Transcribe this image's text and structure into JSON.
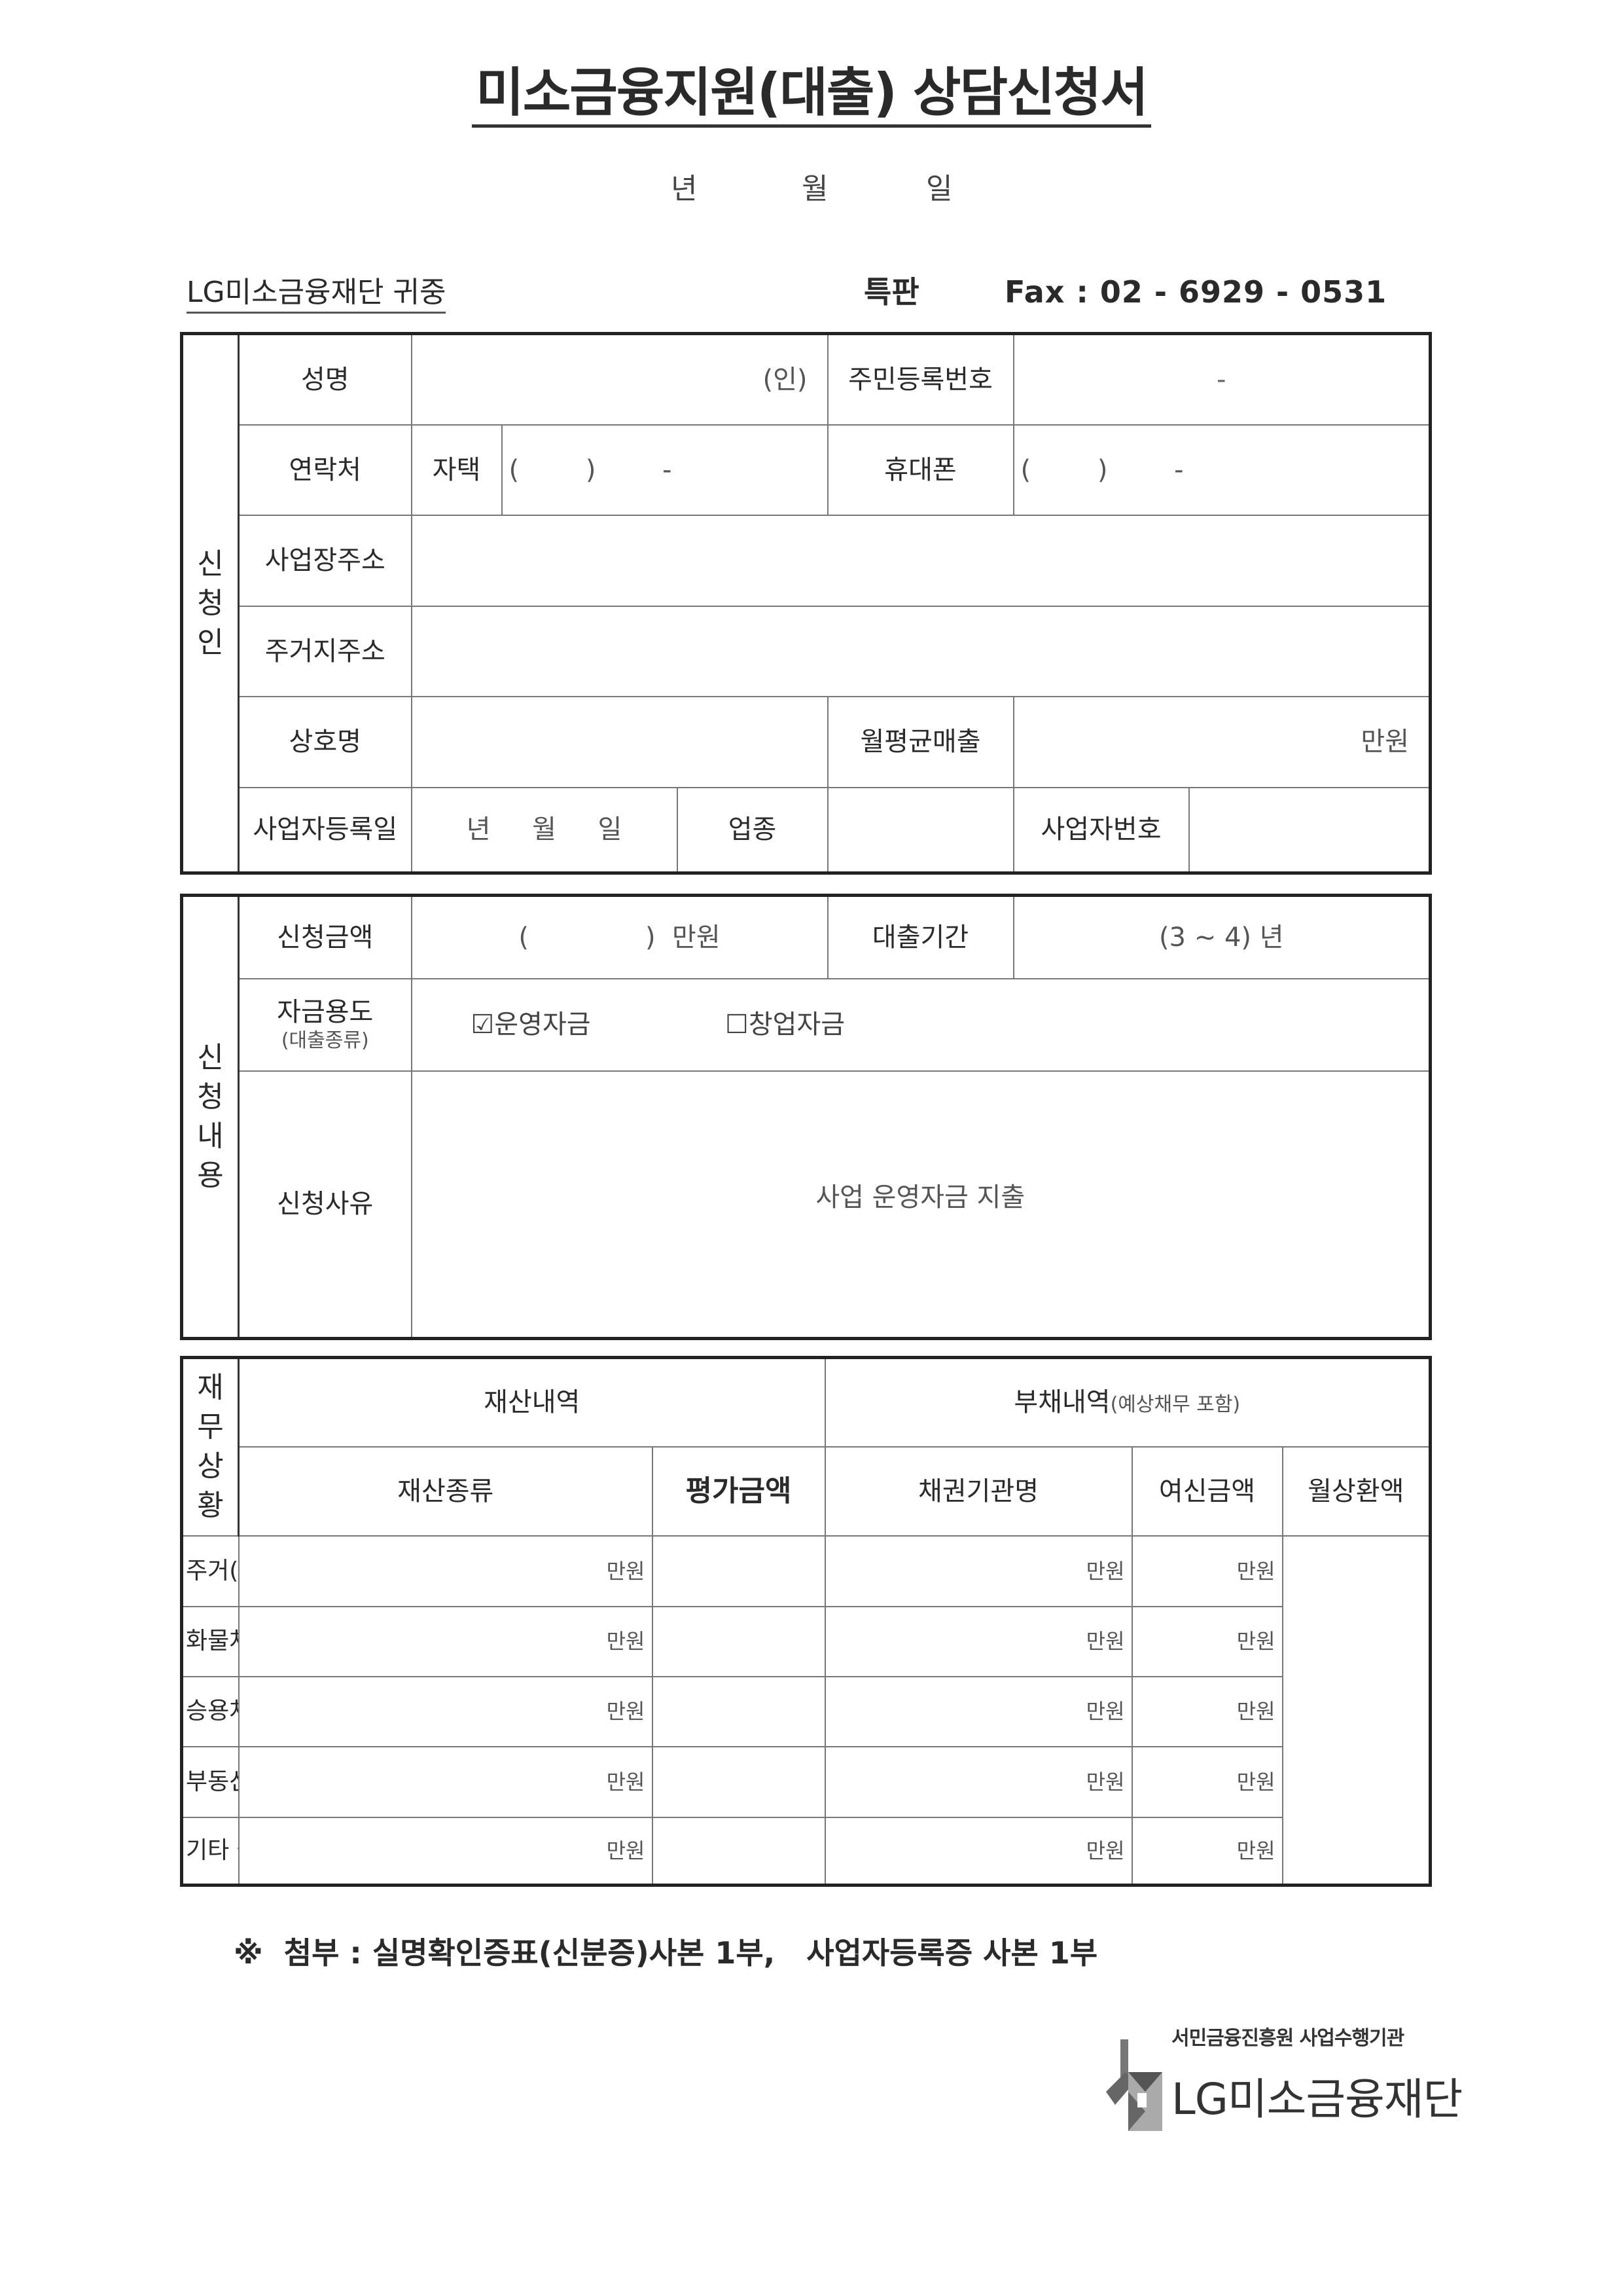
{
  "title": "미소금융지원(대출) 상담신청서",
  "date": {
    "year": "년",
    "month": "월",
    "day": "일"
  },
  "header": {
    "recipient": "LG미소금융재단 귀중",
    "special": "특판",
    "fax": "Fax : 02 - 6929 - 0531"
  },
  "applicant": {
    "section": "신청인",
    "name_label": "성명",
    "seal": "(인)",
    "rrn_label": "주민등록번호",
    "rrn_value": "-",
    "contact_label": "연락처",
    "home_label": "자택",
    "home_value": "(        )        -",
    "mobile_label": "휴대폰",
    "mobile_value": "(        )        -",
    "biz_address_label": "사업장주소",
    "home_address_label": "주거지주소",
    "company_label": "상호명",
    "sales_label": "월평균매출",
    "sales_unit": "만원",
    "reg_date_label": "사업자등록일",
    "reg_date_value": "년     월     일",
    "industry_label": "업종",
    "biz_number_label": "사업자번호"
  },
  "request": {
    "section": "신청내용",
    "amount_label": "신청금액",
    "amount_value": "(              )  만원",
    "period_label": "대출기간",
    "period_value": "(3 ~ 4) 년",
    "purpose_label": "자금용도",
    "purpose_sub": "(대출종류)",
    "purpose_options": [
      {
        "label": "운영자금",
        "checked": true
      },
      {
        "label": "창업자금",
        "checked": false
      }
    ],
    "reason_label": "신청사유",
    "reason_value": "사업 운영자금 지출"
  },
  "finance": {
    "section": "재무상황",
    "assets_header": "재산내역",
    "debts_header": "부채내역",
    "debts_sub": "(예상채무 포함)",
    "columns": [
      "재산종류",
      "평가금액",
      "채권기관명",
      "여신금액",
      "월상환액"
    ],
    "unit": "만원",
    "rows": [
      "주거(자가/보증금)",
      "화물차(톤/연식)",
      "승용차(차종/연식)",
      "부동산",
      "기타 금융자산"
    ]
  },
  "footnote": "※  첨부 : 실명확인증표(신분증)사본 1부,   사업자등록증 사본 1부",
  "logo": {
    "subtitle": "서민금융진흥원 사업수행기관",
    "name": "LG미소금융재단"
  }
}
